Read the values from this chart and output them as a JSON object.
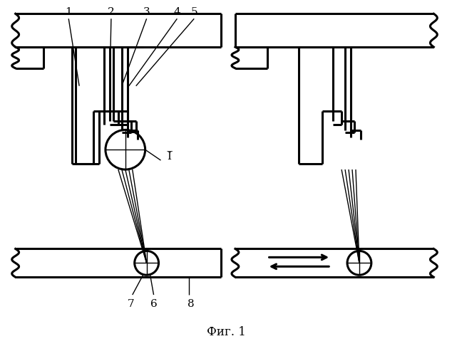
{
  "title": "Фиг. 1",
  "bg_color": "#ffffff",
  "line_color": "#000000",
  "lw": 2.2,
  "thin_lw": 1.0,
  "fig_width": 6.34,
  "fig_height": 5.0
}
